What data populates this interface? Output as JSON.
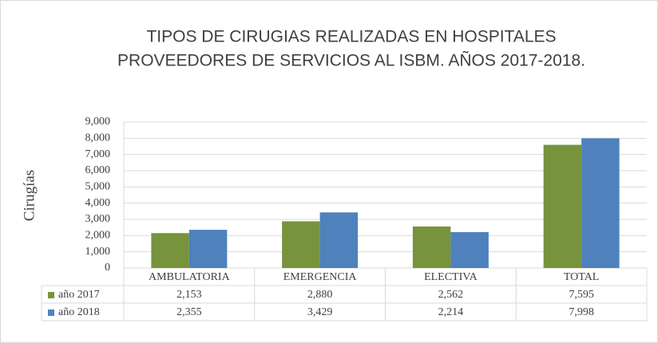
{
  "chart_data": {
    "type": "bar",
    "title": [
      "TIPOS DE  CIRUGIAS REALIZADAS EN HOSPITALES",
      "PROVEEDORES DE SERVICIOS AL ISBM. AÑOS 2017-2018."
    ],
    "y_label": "Cirugías",
    "categories": [
      "AMBULATORIA",
      "EMERGENCIA",
      "ELECTIVA",
      "TOTAL"
    ],
    "series": [
      {
        "name": "año 2017",
        "color": "#77933c",
        "values": [
          2153,
          2880,
          2562,
          7595
        ],
        "value_labels": [
          "2,153",
          "2,880",
          "2,562",
          "7,595"
        ]
      },
      {
        "name": "año 2018",
        "color": "#4f81bd",
        "values": [
          2355,
          3429,
          2214,
          7998
        ],
        "value_labels": [
          "2,355",
          "3,429",
          "2,214",
          "7,998"
        ]
      }
    ],
    "ylim": [
      0,
      9000
    ],
    "yticks": [
      0,
      {
        "value": 1000,
        "label": "1,000"
      },
      {
        "value": 2000,
        "label": "2,000"
      },
      {
        "value": 3000,
        "label": "3,000"
      },
      {
        "value": 4000,
        "label": "4,000"
      },
      {
        "value": 5000,
        "label": "5,000"
      },
      {
        "value": 6000,
        "label": "6,000"
      },
      {
        "value": 7000,
        "label": "7,000"
      },
      {
        "value": 8000,
        "label": "8,000"
      },
      {
        "value": 9000,
        "label": "9,000"
      }
    ],
    "grid": true
  }
}
